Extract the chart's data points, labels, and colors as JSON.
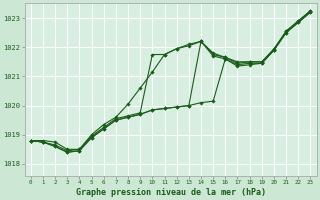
{
  "title": "Graphe pression niveau de la mer (hPa)",
  "bg_color": "#cce8d4",
  "plot_bg_color": "#d8eee0",
  "grid_color": "#ffffff",
  "line_color": "#1a5c1a",
  "marker_color": "#1a5c1a",
  "xlim": [
    -0.5,
    23.5
  ],
  "ylim": [
    1017.6,
    1023.5
  ],
  "yticks": [
    1018,
    1019,
    1020,
    1021,
    1022,
    1023
  ],
  "xticks": [
    0,
    1,
    2,
    3,
    4,
    5,
    6,
    7,
    8,
    9,
    10,
    11,
    12,
    13,
    14,
    15,
    16,
    17,
    18,
    19,
    20,
    21,
    22,
    23
  ],
  "series": [
    [
      1018.8,
      1018.8,
      1018.75,
      1018.5,
      1018.5,
      1019.0,
      1019.35,
      1019.6,
      1020.05,
      1020.6,
      1021.15,
      1021.75,
      1021.95,
      1022.1,
      1022.2,
      1021.8,
      1021.65,
      1021.5,
      1021.5,
      1021.5,
      1021.95,
      1022.55,
      1022.9,
      1023.25
    ],
    [
      1018.8,
      1018.75,
      1018.65,
      1018.45,
      1018.5,
      1018.95,
      1019.25,
      1019.55,
      1019.65,
      1019.75,
      1021.75,
      1021.75,
      1021.95,
      1022.05,
      1022.2,
      1021.75,
      1021.65,
      1021.45,
      1021.5,
      1021.5,
      1021.9,
      1022.55,
      1022.9,
      1023.25
    ],
    [
      1018.8,
      1018.75,
      1018.6,
      1018.4,
      1018.45,
      1018.9,
      1019.2,
      1019.5,
      1019.6,
      1019.7,
      1019.85,
      1019.9,
      1019.95,
      1020.0,
      1022.2,
      1021.7,
      1021.6,
      1021.4,
      1021.45,
      1021.45,
      1021.9,
      1022.5,
      1022.85,
      1023.2
    ],
    [
      1018.8,
      1018.75,
      1018.6,
      1018.4,
      1018.45,
      1018.9,
      1019.2,
      1019.5,
      1019.6,
      1019.7,
      1019.85,
      1019.9,
      1019.95,
      1020.0,
      1020.1,
      1020.15,
      1021.6,
      1021.35,
      1021.4,
      1021.45,
      1021.9,
      1022.5,
      1022.85,
      1023.2
    ]
  ]
}
